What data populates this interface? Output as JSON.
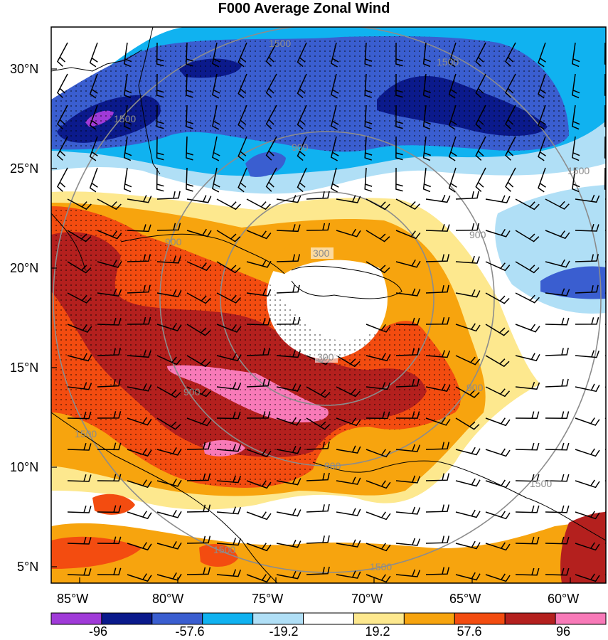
{
  "title": "F000 Average Zonal Wind",
  "lat_labels": [
    "30°N",
    "25°N",
    "20°N",
    "15°N",
    "10°N",
    "5°N"
  ],
  "lon_labels": [
    "85°W",
    "80°W",
    "75°W",
    "70°W",
    "65°W",
    "60°W"
  ],
  "radius_labels": [
    "300",
    "900",
    "1500"
  ],
  "colorbar": {
    "colors": [
      "#a03ad8",
      "#0b1a8c",
      "#3a5ed0",
      "#10b2f0",
      "#b0dff6",
      "#ffffff",
      "#fde88e",
      "#f7a40e",
      "#f34c10",
      "#b4201e",
      "#f87ab8"
    ],
    "labels": [
      "-96",
      "-57.6",
      "-19.2",
      "19.2",
      "57.6",
      "96"
    ]
  }
}
